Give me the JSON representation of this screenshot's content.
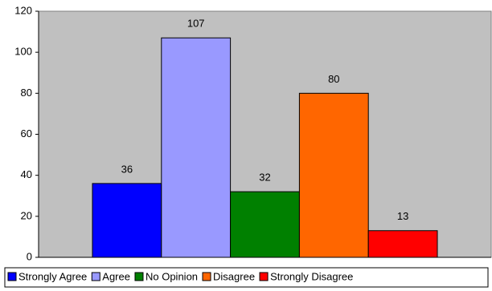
{
  "chart_data": {
    "type": "bar",
    "categories": [
      null
    ],
    "series": [
      {
        "name": "Strongly Agree",
        "color": "#0000ff",
        "values": [
          36
        ]
      },
      {
        "name": "Agree",
        "color": "#9999ff",
        "values": [
          107
        ]
      },
      {
        "name": "No Opinion",
        "color": "#008000",
        "values": [
          32
        ]
      },
      {
        "name": "Disagree",
        "color": "#ff6600",
        "values": [
          80
        ]
      },
      {
        "name": "Strongly Disagree",
        "color": "#ff0000",
        "values": [
          13
        ]
      }
    ],
    "ylim": [
      0,
      120
    ],
    "yticks": [
      0,
      20,
      40,
      60,
      80,
      100,
      120
    ],
    "grid": false,
    "legend": "bottom",
    "plot_background": "#c0c0c0"
  }
}
